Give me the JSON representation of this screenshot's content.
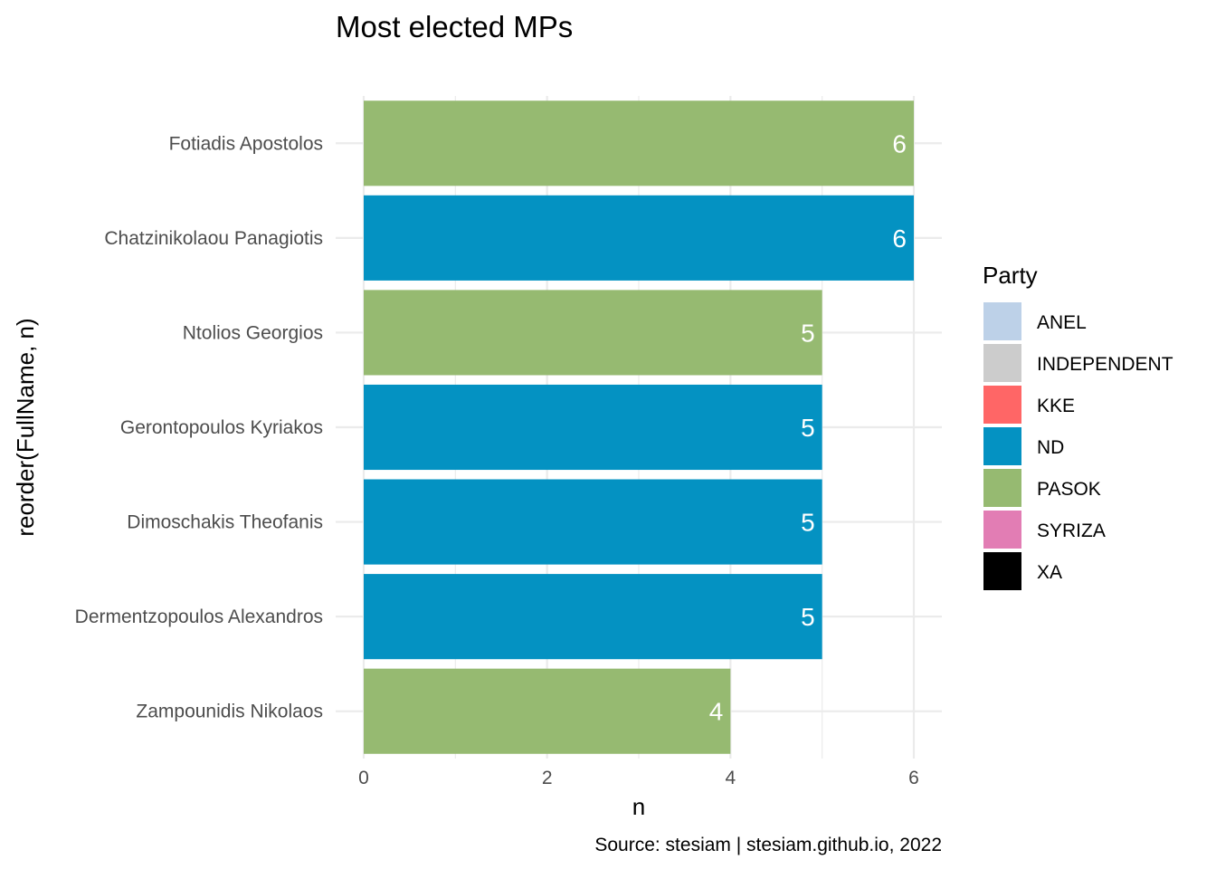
{
  "chart_data": {
    "type": "bar",
    "orientation": "horizontal",
    "title": "Most elected MPs",
    "xlabel": "n",
    "ylabel": "reorder(FullName, n)",
    "caption": "Source: stesiam | stesiam.github.io, 2022",
    "xlim": [
      0,
      6.3
    ],
    "x_ticks": [
      0,
      2,
      4,
      6
    ],
    "grid": true,
    "legend": {
      "title": "Party",
      "position": "right",
      "items": [
        {
          "label": "ANEL",
          "color": "#bdd1e8"
        },
        {
          "label": "INDEPENDENT",
          "color": "#cccccc"
        },
        {
          "label": "KKE",
          "color": "#ff6666"
        },
        {
          "label": "ND",
          "color": "#0492c2"
        },
        {
          "label": "PASOK",
          "color": "#96ba71"
        },
        {
          "label": "SYRIZA",
          "color": "#e27db4"
        },
        {
          "label": "XA",
          "color": "#000000"
        }
      ]
    },
    "bars": [
      {
        "name": "Fotiadis Apostolos",
        "value": 6,
        "party": "PASOK"
      },
      {
        "name": "Chatzinikolaou Panagiotis",
        "value": 6,
        "party": "ND"
      },
      {
        "name": "Ntolios Georgios",
        "value": 5,
        "party": "PASOK"
      },
      {
        "name": "Gerontopoulos Kyriakos",
        "value": 5,
        "party": "ND"
      },
      {
        "name": "Dimoschakis Theofanis",
        "value": 5,
        "party": "ND"
      },
      {
        "name": "Dermentzopoulos Alexandros",
        "value": 5,
        "party": "ND"
      },
      {
        "name": "Zampounidis Nikolaos",
        "value": 4,
        "party": "PASOK"
      }
    ]
  }
}
